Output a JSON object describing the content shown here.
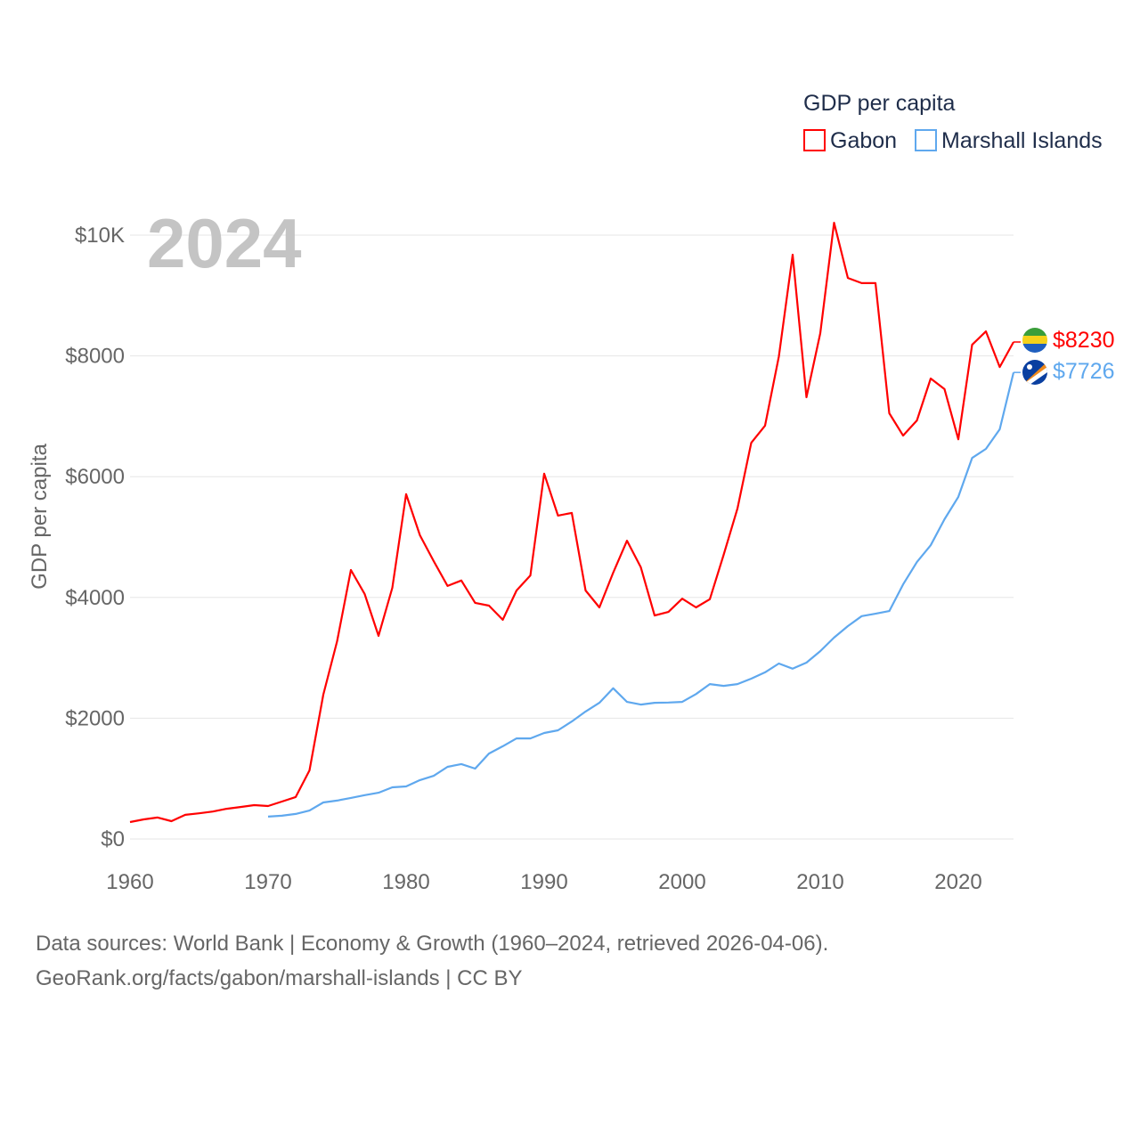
{
  "chart_data": {
    "type": "line",
    "title": "GDP per capita",
    "ylabel": "GDP per capita",
    "xlabel": "",
    "year_label": "2024",
    "ylim": [
      0,
      10000
    ],
    "xlim": [
      1960,
      2024
    ],
    "x_ticks": [
      "1960",
      "1970",
      "1980",
      "1990",
      "2000",
      "2010",
      "2020"
    ],
    "y_ticks": [
      {
        "value": 0,
        "label": "$0"
      },
      {
        "value": 2000,
        "label": "$2000"
      },
      {
        "value": 4000,
        "label": "$4000"
      },
      {
        "value": 6000,
        "label": "$6000"
      },
      {
        "value": 8000,
        "label": "$8000"
      },
      {
        "value": 10000,
        "label": "$10K"
      }
    ],
    "grid": true,
    "legend_position": "top-right",
    "series": [
      {
        "name": "Gabon",
        "color": "#ff0000",
        "end_label": "$8230",
        "start_year": 1960,
        "values": [
          280,
          325,
          355,
          295,
          400,
          425,
          455,
          500,
          530,
          560,
          545,
          620,
          695,
          1135,
          2390,
          3275,
          4455,
          4055,
          3365,
          4160,
          5710,
          5030,
          4600,
          4190,
          4280,
          3910,
          3865,
          3630,
          4115,
          4365,
          6050,
          5355,
          5400,
          4115,
          3835,
          4410,
          4940,
          4500,
          3700,
          3760,
          3980,
          3835,
          3970,
          4705,
          5470,
          6560,
          6845,
          7990,
          9675,
          7315,
          8375,
          10205,
          9290,
          9205,
          9205,
          7050,
          6680,
          6930,
          7625,
          7450,
          6620,
          8185,
          8405,
          7815,
          8230
        ]
      },
      {
        "name": "Marshall Islands",
        "color": "#5fa8ee",
        "end_label": "$7726",
        "start_year": 1970,
        "values": [
          370,
          385,
          415,
          470,
          605,
          635,
          680,
          725,
          765,
          855,
          870,
          975,
          1045,
          1195,
          1240,
          1165,
          1415,
          1535,
          1665,
          1665,
          1755,
          1800,
          1945,
          2110,
          2255,
          2495,
          2270,
          2225,
          2255,
          2260,
          2270,
          2400,
          2565,
          2535,
          2565,
          2655,
          2760,
          2905,
          2820,
          2920,
          3110,
          3335,
          3525,
          3690,
          3730,
          3775,
          4215,
          4585,
          4865,
          5295,
          5665,
          6310,
          6460,
          6785,
          7726
        ]
      }
    ]
  },
  "footer": {
    "line1": "Data sources: World Bank | Economy & Growth (1960–2024, retrieved 2026-04-06).",
    "line2": "GeoRank.org/facts/gabon/marshall-islands | CC BY"
  }
}
